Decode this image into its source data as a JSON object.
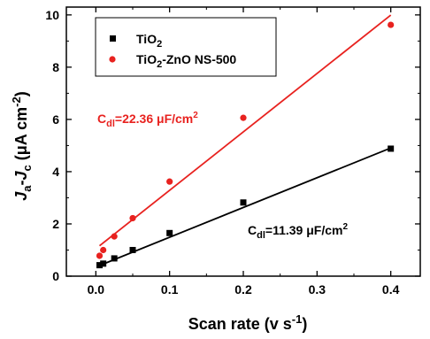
{
  "chart_data": {
    "type": "scatter",
    "title": "",
    "xlabel_main": "Scan rate (v s",
    "xlabel_sup": "-1",
    "xlabel_end": ")",
    "ylabel_parts": {
      "ja": "J",
      "ja_sub": "a",
      "dash": "-",
      "jc": "J",
      "jc_sub": "c",
      "units": " (μA cm",
      "units_sup": "-2",
      "units_end": ")"
    },
    "xlim": [
      -0.04,
      0.44
    ],
    "ylim": [
      0,
      10.3
    ],
    "xticks": [
      0.0,
      0.1,
      0.2,
      0.3,
      0.4
    ],
    "xtick_labels": [
      "0.0",
      "0.1",
      "0.2",
      "0.3",
      "0.4"
    ],
    "yticks": [
      0,
      2,
      4,
      6,
      8,
      10
    ],
    "ytick_labels": [
      "0",
      "2",
      "4",
      "6",
      "8",
      "10"
    ],
    "legend_position": "top-left",
    "series": [
      {
        "name": "TiO2",
        "legend_main": "TiO",
        "legend_sub": "2",
        "legend_rest": "",
        "color": "#000000",
        "marker": "square",
        "x": [
          0.005,
          0.01,
          0.025,
          0.05,
          0.1,
          0.2,
          0.4
        ],
        "y": [
          0.42,
          0.48,
          0.68,
          1.0,
          1.65,
          2.82,
          4.88
        ],
        "fit": {
          "slope": 11.39,
          "intercept": 0.35
        },
        "annotation": {
          "prefix": "C",
          "sub": "dl",
          "value": "=11.39 μF/cm",
          "sup": "2"
        }
      },
      {
        "name": "TiO2-ZnO NS-500",
        "legend_main": "TiO",
        "legend_sub": "2",
        "legend_rest": "-ZnO NS-500",
        "color": "#e8221f",
        "marker": "circle",
        "x": [
          0.005,
          0.01,
          0.025,
          0.05,
          0.1,
          0.2,
          0.4
        ],
        "y": [
          0.78,
          1.0,
          1.52,
          2.22,
          3.62,
          6.06,
          9.62
        ],
        "fit": {
          "slope": 22.36,
          "intercept": 1.05
        },
        "annotation": {
          "prefix": "C",
          "sub": "dl",
          "value": "=22.36 μF/cm",
          "sup": "2"
        }
      }
    ]
  }
}
